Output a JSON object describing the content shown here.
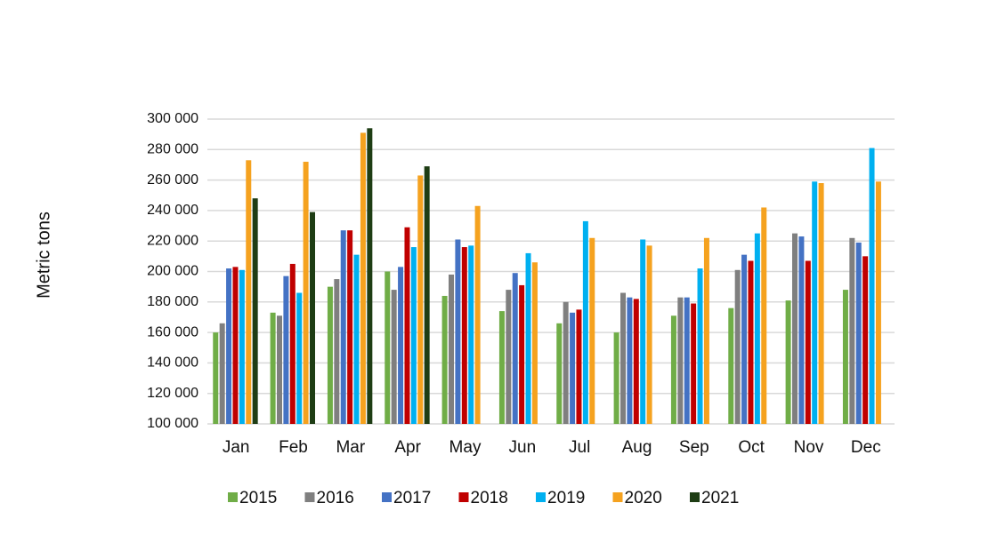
{
  "chart_data": {
    "type": "bar",
    "y_label": "Metric tons",
    "categories": [
      "Jan",
      "Feb",
      "Mar",
      "Apr",
      "May",
      "Jun",
      "Jul",
      "Aug",
      "Sep",
      "Oct",
      "Nov",
      "Dec"
    ],
    "series": [
      {
        "name": "2015",
        "color": "#70ad47",
        "values": [
          160000,
          173000,
          190000,
          200000,
          184000,
          174000,
          166000,
          160000,
          171000,
          176000,
          181000,
          188000
        ]
      },
      {
        "name": "2016",
        "color": "#7f7f7f",
        "values": [
          166000,
          171000,
          195000,
          188000,
          198000,
          188000,
          180000,
          186000,
          183000,
          201000,
          225000,
          222000
        ]
      },
      {
        "name": "2017",
        "color": "#4472c4",
        "values": [
          202000,
          197000,
          227000,
          203000,
          221000,
          199000,
          173000,
          183000,
          183000,
          211000,
          223000,
          219000
        ]
      },
      {
        "name": "2018",
        "color": "#c00000",
        "values": [
          203000,
          205000,
          227000,
          229000,
          216000,
          191000,
          175000,
          182000,
          179000,
          207000,
          207000,
          210000
        ]
      },
      {
        "name": "2019",
        "color": "#00b0f0",
        "values": [
          201000,
          186000,
          211000,
          216000,
          217000,
          212000,
          233000,
          221000,
          202000,
          225000,
          259000,
          281000
        ]
      },
      {
        "name": "2020",
        "color": "#f5a21f",
        "values": [
          273000,
          272000,
          291000,
          263000,
          243000,
          206000,
          222000,
          217000,
          222000,
          242000,
          258000,
          259000
        ]
      },
      {
        "name": "2021",
        "color": "#1e3d14",
        "values": [
          248000,
          239000,
          294000,
          269000,
          null,
          null,
          null,
          null,
          null,
          null,
          null,
          null
        ]
      }
    ],
    "ylim": [
      100000,
      300000
    ],
    "yticks": [
      {
        "value": 100000,
        "label": "100 000"
      },
      {
        "value": 120000,
        "label": "120 000"
      },
      {
        "value": 140000,
        "label": "140 000"
      },
      {
        "value": 160000,
        "label": "160 000"
      },
      {
        "value": 180000,
        "label": "180 000"
      },
      {
        "value": 200000,
        "label": "200 000"
      },
      {
        "value": 220000,
        "label": "220 000"
      },
      {
        "value": 240000,
        "label": "240 000"
      },
      {
        "value": 260000,
        "label": "260 000"
      },
      {
        "value": 280000,
        "label": "280 000"
      },
      {
        "value": 300000,
        "label": "300 000"
      }
    ],
    "grid": true
  }
}
